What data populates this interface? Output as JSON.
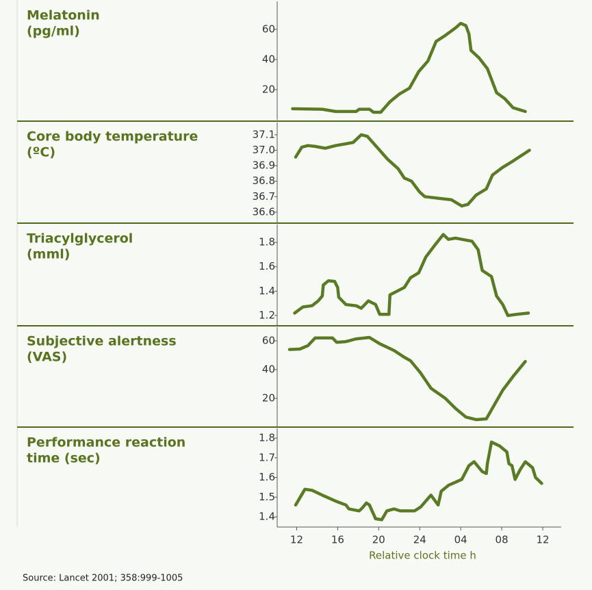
{
  "chart_data": [
    {
      "type": "line",
      "title_lines": [
        "Melatonin",
        "(pg/ml)"
      ],
      "color": "#5b7a25",
      "x": [
        11.6,
        14.5,
        15.8,
        17.8,
        18.1,
        19.1,
        19.5,
        20.2,
        21.1,
        22,
        23,
        23.9,
        24.8,
        25.6,
        26.5,
        27.5,
        28,
        28.5,
        28.8,
        29,
        29.8,
        30.6,
        31.5,
        32.3,
        33.1,
        34.3
      ],
      "values": [
        7.3,
        7,
        5.5,
        5.5,
        7,
        7,
        5,
        5,
        12,
        17,
        21,
        32,
        39,
        52,
        56,
        61,
        64,
        62.5,
        57,
        46,
        41,
        34,
        18,
        14,
        8,
        5.5
      ],
      "xlim": [
        10.1,
        37.8
      ],
      "ylim": [
        0,
        79.5
      ],
      "yticks": [
        20,
        40,
        60
      ]
    },
    {
      "type": "line",
      "title_lines": [
        "Core body temperature",
        "(ºC)"
      ],
      "color": "#5b7a25",
      "x": [
        11.9,
        12.5,
        13.1,
        13.8,
        14.8,
        15.8,
        17.5,
        18.3,
        18.9,
        19.7,
        20.9,
        21.9,
        22.5,
        23.2,
        24,
        24.5,
        25.8,
        27.1,
        28.1,
        28.7,
        29.5,
        30.5,
        31.1,
        32.1,
        33.1,
        34.7
      ],
      "values": [
        36.956,
        37.02,
        37.03,
        37.025,
        37.013,
        37.03,
        37.05,
        37.1,
        37.09,
        37.03,
        36.94,
        36.88,
        36.82,
        36.8,
        36.73,
        36.7,
        36.69,
        36.68,
        36.64,
        36.65,
        36.71,
        36.75,
        36.84,
        36.89,
        36.93,
        37.0
      ],
      "xlim": [
        10.1,
        37.8
      ],
      "ylim": [
        36.529,
        37.188
      ],
      "yticks": [
        36.6,
        36.7,
        36.8,
        36.9,
        {
          "value": 37,
          "label": "37.0"
        },
        37.1
      ]
    },
    {
      "type": "line",
      "title_lines": [
        "Triacylglycerol",
        "(mml)"
      ],
      "color": "#5b7a25",
      "x": [
        11.8,
        12.6,
        13.5,
        14.1,
        14.5,
        14.6,
        15.1,
        15.7,
        16,
        16.1,
        16.8,
        17.8,
        18.3,
        19,
        19.7,
        20.1,
        21,
        21.1,
        22.5,
        23.1,
        23.9,
        24.6,
        25.5,
        26.3,
        26.8,
        27.5,
        29.1,
        29.7,
        30.1,
        31,
        31.5,
        32.1,
        32.6,
        33.5,
        34.6
      ],
      "values": [
        1.22,
        1.27,
        1.28,
        1.32,
        1.36,
        1.45,
        1.485,
        1.48,
        1.43,
        1.35,
        1.29,
        1.28,
        1.26,
        1.32,
        1.29,
        1.21,
        1.21,
        1.37,
        1.43,
        1.51,
        1.55,
        1.68,
        1.78,
        1.865,
        1.825,
        1.835,
        1.81,
        1.74,
        1.57,
        1.52,
        1.36,
        1.29,
        1.2,
        1.21,
        1.22
      ],
      "xlim": [
        10.1,
        37.8
      ],
      "ylim": [
        1.1155,
        1.958
      ],
      "yticks": [
        1.2,
        1.4,
        1.6,
        1.8
      ]
    },
    {
      "type": "line",
      "title_lines": [
        "Subjective alertness",
        "(VAS)"
      ],
      "color": "#5b7a25",
      "x": [
        11.3,
        12.3,
        13.1,
        13.8,
        15.5,
        15.9,
        16.8,
        17.8,
        19.1,
        20.1,
        21.5,
        22.5,
        23.1,
        24.1,
        25.1,
        26.5,
        27.5,
        28.5,
        29.5,
        30.5,
        31,
        32.1,
        33.1,
        34.3
      ],
      "values": [
        54,
        54.3,
        56.7,
        62,
        62,
        59,
        59.5,
        61.4,
        62.4,
        58,
        53.3,
        48.6,
        46.2,
        37.6,
        27,
        20,
        12.9,
        7,
        5.2,
        5.7,
        12,
        25.7,
        35.2,
        45.7
      ],
      "xlim": [
        10.1,
        37.8
      ],
      "ylim": [
        0,
        70.5
      ],
      "yticks": [
        20,
        40,
        60
      ]
    },
    {
      "type": "line",
      "title_lines": [
        "Performance reaction",
        "time (sec)"
      ],
      "color": "#5b7a25",
      "x": [
        11.9,
        12.8,
        13.5,
        14.5,
        15.8,
        16.8,
        17.1,
        18.1,
        18.4,
        18.8,
        19.1,
        19.7,
        20.3,
        20.8,
        21.5,
        22.1,
        23.5,
        24.1,
        25.1,
        25.8,
        26.1,
        26.8,
        28.1,
        28.8,
        29.3,
        30.1,
        30.5,
        30.6,
        31,
        31.8,
        32.5,
        32.7,
        33,
        33.3,
        33.8,
        34.3,
        35,
        35.3,
        35.9
      ],
      "values": [
        1.46,
        1.54,
        1.535,
        1.51,
        1.48,
        1.46,
        1.44,
        1.43,
        1.445,
        1.47,
        1.46,
        1.39,
        1.385,
        1.43,
        1.44,
        1.43,
        1.43,
        1.45,
        1.51,
        1.46,
        1.53,
        1.56,
        1.59,
        1.66,
        1.68,
        1.63,
        1.62,
        1.67,
        1.78,
        1.76,
        1.73,
        1.67,
        1.66,
        1.59,
        1.64,
        1.68,
        1.65,
        1.6,
        1.57
      ],
      "xlim": [
        10.1,
        37.8
      ],
      "ylim": [
        1.348,
        1.856
      ],
      "yticks": [
        1.4,
        1.5,
        1.6,
        1.7,
        1.8
      ],
      "xticks": [
        12,
        16,
        20,
        24,
        {
          "value": 28,
          "label": "04"
        },
        {
          "value": 32,
          "label": "08"
        },
        {
          "value": 36,
          "label": "12"
        }
      ],
      "xlabel": "Relative clock time h"
    }
  ],
  "source": "Source: Lancet 2001; 358:999-1005"
}
